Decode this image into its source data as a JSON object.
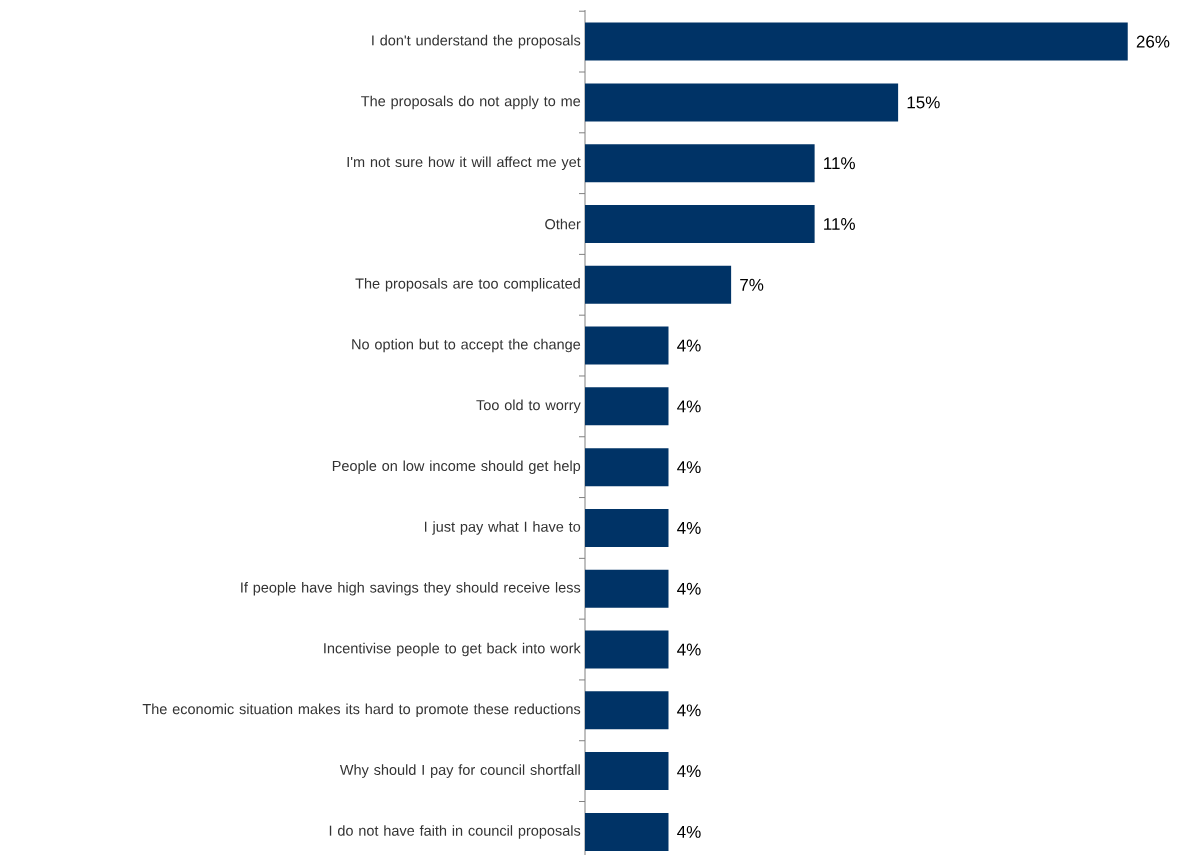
{
  "chart_data": {
    "type": "bar",
    "orientation": "horizontal",
    "color": "#003366",
    "categories": [
      "I don't understand the proposals",
      "The proposals do not apply to me",
      "I'm not sure how it will affect me yet",
      "Other",
      "The proposals are too complicated",
      "No option but to accept the change",
      "Too old to worry",
      "People on low income should get help",
      "I just pay what I have to",
      "If people have high savings they should receive less",
      "Incentivise people to get back into work",
      "The economic situation makes its hard to promote these reductions",
      "Why should I pay for council shortfall",
      "I do not have faith in council proposals"
    ],
    "values": [
      26,
      15,
      11,
      11,
      7,
      4,
      4,
      4,
      4,
      4,
      4,
      4,
      4,
      4
    ],
    "value_labels": [
      "26%",
      "15%",
      "11%",
      "11%",
      "7%",
      "4%",
      "4%",
      "4%",
      "4%",
      "4%",
      "4%",
      "4%",
      "4%",
      "4%"
    ]
  }
}
